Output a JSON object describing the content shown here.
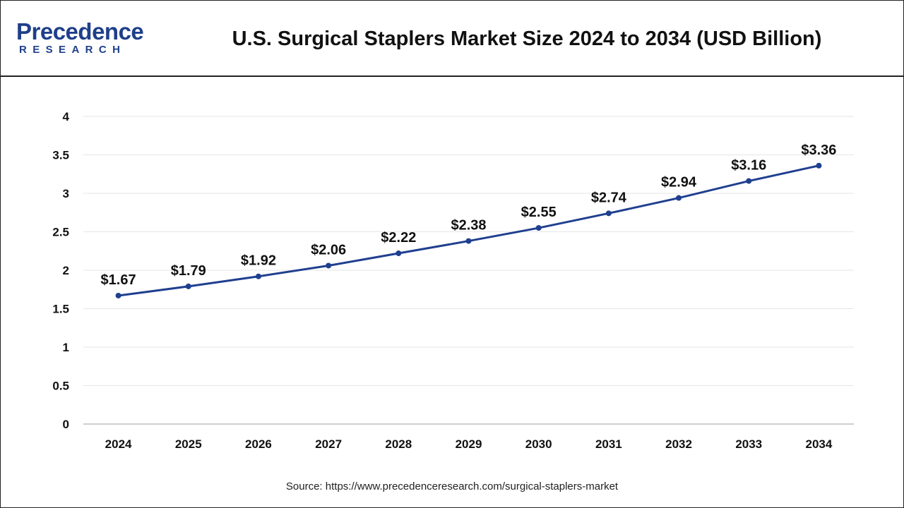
{
  "brand": {
    "name": "Precedence",
    "tagline": "RESEARCH",
    "color": "#1f3f8a"
  },
  "chart_data": {
    "type": "line",
    "title": "U.S. Surgical Staplers Market Size 2024 to 2034 (USD Billion)",
    "xlabel": "",
    "ylabel": "",
    "categories": [
      "2024",
      "2025",
      "2026",
      "2027",
      "2028",
      "2029",
      "2030",
      "2031",
      "2032",
      "2033",
      "2034"
    ],
    "series": [
      {
        "values": [
          1.67,
          1.79,
          1.92,
          2.06,
          2.22,
          2.38,
          2.55,
          2.74,
          2.94,
          3.16,
          3.36
        ],
        "labels": [
          "$1.67",
          "$1.79",
          "$1.92",
          "$2.06",
          "$2.22",
          "$2.38",
          "$2.55",
          "$2.74",
          "$2.94",
          "$3.16",
          "$3.36"
        ],
        "color": "#1f3f8f"
      }
    ],
    "ylim": [
      0,
      4
    ],
    "yticks": [
      0,
      0.5,
      1,
      1.5,
      2,
      2.5,
      3,
      3.5,
      4
    ],
    "ytick_labels": [
      "0",
      "0.5",
      "1",
      "1.5",
      "2",
      "2.5",
      "3",
      "3.5",
      "4"
    ],
    "grid": true,
    "legend": "none"
  },
  "source": "Source: https://www.precedenceresearch.com/surgical-staplers-market"
}
